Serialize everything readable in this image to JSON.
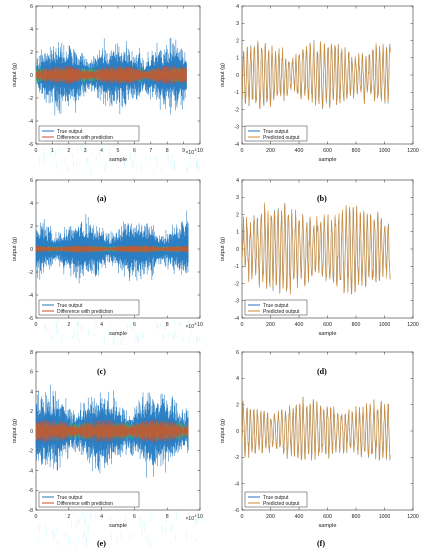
{
  "colors": {
    "true_output": "#1f77c0",
    "difference": "#d64d2a",
    "predicted": "#d98b2b",
    "residual_overlay": "#5cbf3c",
    "artifact_cyan": "#66e6f0",
    "artifact_magenta": "#e36bdc"
  },
  "chart_data": [
    {
      "id": "a",
      "panel_label": "(a)",
      "type": "line",
      "xlabel": "sample",
      "ylabel": "output (g)",
      "xlim": [
        0,
        10
      ],
      "ylim": [
        -6,
        6
      ],
      "xticks": [
        "0",
        "1",
        "2",
        "3",
        "4",
        "5",
        "6",
        "7",
        "8",
        "9",
        "10"
      ],
      "yticks": [
        "-6",
        "-4",
        "-2",
        "0",
        "2",
        "4",
        "6"
      ],
      "x_multiplier_base": "×10",
      "x_multiplier_exp": "4",
      "legend_location": "lower-left",
      "series": [
        {
          "name": "True output",
          "color_key": "true_output",
          "length": 9.2,
          "amplitude": 3.6
        },
        {
          "name": "Difference with prediction",
          "color_key": "difference",
          "length": 9.2,
          "amplitude": 0.7
        }
      ]
    },
    {
      "id": "b",
      "panel_label": "(b)",
      "type": "line",
      "xlabel": "sample",
      "ylabel": "output (g)",
      "xlim": [
        0,
        1200
      ],
      "ylim": [
        -4,
        4
      ],
      "xticks": [
        "0",
        "200",
        "400",
        "600",
        "800",
        "1000",
        "1200"
      ],
      "yticks": [
        "-4",
        "-3",
        "-2",
        "-1",
        "0",
        "1",
        "2",
        "3",
        "4"
      ],
      "legend_location": "lower-left",
      "series": [
        {
          "name": "True output",
          "color_key": "true_output",
          "length": 1040,
          "amplitude": 1.7
        },
        {
          "name": "Predicted output",
          "color_key": "predicted",
          "length": 1040,
          "amplitude": 1.7
        }
      ]
    },
    {
      "id": "c",
      "panel_label": "(c)",
      "type": "line",
      "xlabel": "sample",
      "ylabel": "output (g)",
      "xlim": [
        0,
        10
      ],
      "ylim": [
        -6,
        6
      ],
      "xticks": [
        "0",
        "2",
        "4",
        "6",
        "8",
        "10"
      ],
      "yticks": [
        "-6",
        "-4",
        "-2",
        "0",
        "2",
        "4",
        "6"
      ],
      "x_multiplier_base": "×10",
      "x_multiplier_exp": "4",
      "legend_location": "lower-left",
      "series": [
        {
          "name": "True output",
          "color_key": "true_output",
          "length": 9.3,
          "amplitude": 3.2
        },
        {
          "name": "Difference with prediction",
          "color_key": "difference",
          "length": 9.3,
          "amplitude": 0.3
        }
      ]
    },
    {
      "id": "d",
      "panel_label": "(d)",
      "type": "line",
      "xlabel": "sample",
      "ylabel": "output (g)",
      "xlim": [
        0,
        1200
      ],
      "ylim": [
        -4,
        4
      ],
      "xticks": [
        "0",
        "200",
        "400",
        "600",
        "800",
        "1000",
        "1200"
      ],
      "yticks": [
        "-4",
        "-3",
        "-2",
        "-1",
        "0",
        "1",
        "2",
        "3",
        "4"
      ],
      "legend_location": "lower-left",
      "series": [
        {
          "name": "True output",
          "color_key": "true_output",
          "length": 1040,
          "amplitude": 2.3
        },
        {
          "name": "Predicted output",
          "color_key": "predicted",
          "length": 1040,
          "amplitude": 2.3
        }
      ]
    },
    {
      "id": "e",
      "panel_label": "(e)",
      "type": "line",
      "xlabel": "sample",
      "ylabel": "output (g)",
      "xlim": [
        0,
        10
      ],
      "ylim": [
        -8,
        8
      ],
      "xticks": [
        "0",
        "2",
        "4",
        "6",
        "8",
        "10"
      ],
      "yticks": [
        "-8",
        "-6",
        "-4",
        "-2",
        "0",
        "2",
        "4",
        "6",
        "8"
      ],
      "x_multiplier_base": "×10",
      "x_multiplier_exp": "4",
      "legend_location": "lower-left",
      "series": [
        {
          "name": "True output",
          "color_key": "true_output",
          "length": 9.3,
          "amplitude": 4.8
        },
        {
          "name": "Difference with prediction",
          "color_key": "difference",
          "length": 9.3,
          "amplitude": 1.0
        }
      ]
    },
    {
      "id": "f",
      "panel_label": "(f)",
      "type": "line",
      "xlabel": "sample",
      "ylabel": "output (g)",
      "xlim": [
        0,
        1200
      ],
      "ylim": [
        -6,
        6
      ],
      "xticks": [
        "0",
        "200",
        "400",
        "600",
        "800",
        "1000",
        "1200"
      ],
      "yticks": [
        "-6",
        "-4",
        "-2",
        "0",
        "2",
        "4",
        "6"
      ],
      "legend_location": "lower-left",
      "series": [
        {
          "name": "True output",
          "color_key": "true_output",
          "length": 1040,
          "amplitude": 2.0
        },
        {
          "name": "Predicted output",
          "color_key": "predicted",
          "length": 1040,
          "amplitude": 2.0
        }
      ]
    }
  ]
}
